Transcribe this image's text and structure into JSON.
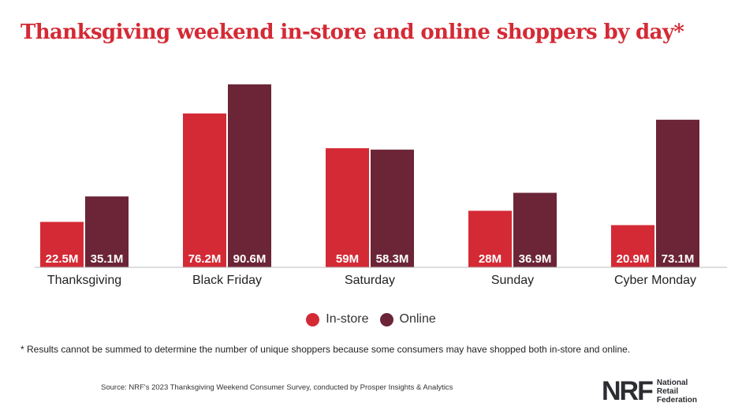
{
  "title": "Thanksgiving weekend in-store and online shoppers by day*",
  "footnote": "* Results cannot be summed to determine the number of unique shoppers because some consumers may have shopped both in-store and online.",
  "source": "Source: NRF's 2023 Thanksgiving Weekend Consumer Survey, conducted by Prosper Insights & Analytics",
  "logo": {
    "mark": "NRF",
    "line1": "National",
    "line2": "Retail",
    "line3": "Federation"
  },
  "colors": {
    "in_store": "#d42a35",
    "online": "#6b2537",
    "axis": "#bbbbbb",
    "bar_label": "#ffffff"
  },
  "chart_data": {
    "type": "bar",
    "title": "Thanksgiving weekend in-store and online shoppers by day*",
    "xlabel": "",
    "ylabel": "",
    "categories": [
      "Thanksgiving",
      "Black Friday",
      "Saturday",
      "Sunday",
      "Cyber Monday"
    ],
    "series": [
      {
        "name": "In-store",
        "color": "#d42a35",
        "values": [
          22.5,
          76.2,
          59,
          28,
          20.9
        ],
        "labels": [
          "22.5M",
          "76.2M",
          "59M",
          "28M",
          "20.9M"
        ]
      },
      {
        "name": "Online",
        "color": "#6b2537",
        "values": [
          35.1,
          90.6,
          58.3,
          36.9,
          73.1
        ],
        "labels": [
          "35.1M",
          "90.6M",
          "58.3M",
          "36.9M",
          "73.1M"
        ]
      }
    ],
    "ylim": [
      0,
      90.6
    ],
    "grid": false,
    "legend_position": "bottom-center"
  }
}
